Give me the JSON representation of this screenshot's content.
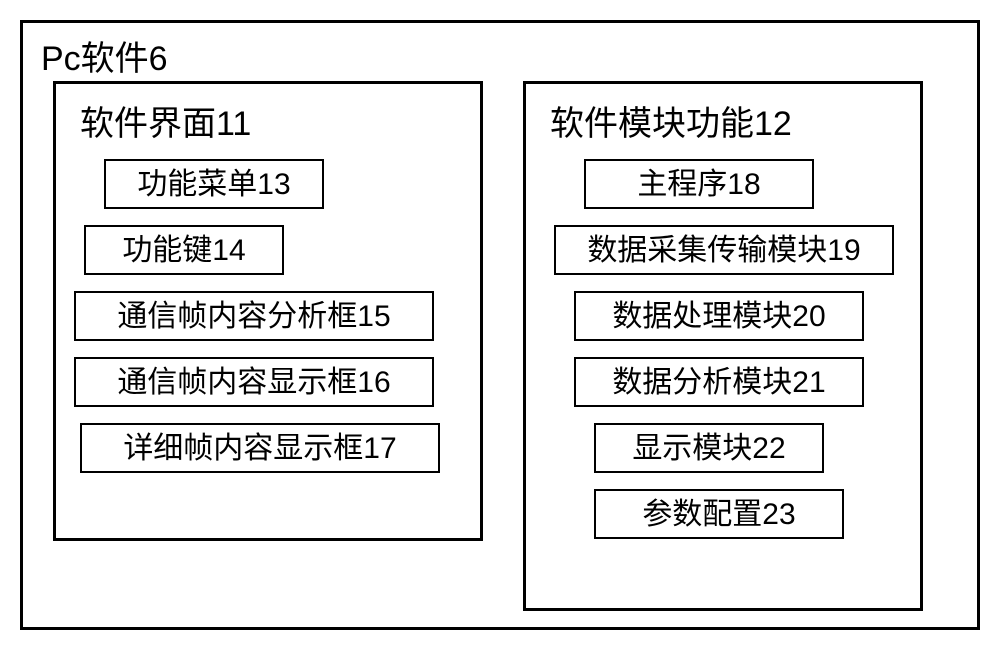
{
  "colors": {
    "border": "#000000",
    "background": "#ffffff",
    "text": "#000000"
  },
  "typography": {
    "title_fontsize_pt": 26,
    "item_fontsize_pt": 22,
    "font_family": "SimSun"
  },
  "outer": {
    "title": "Pc软件6"
  },
  "left_panel": {
    "title": "软件界面11",
    "items": [
      {
        "label": "功能菜单13"
      },
      {
        "label": "功能键14"
      },
      {
        "label": "通信帧内容分析框15"
      },
      {
        "label": "通信帧内容显示框16"
      },
      {
        "label": "详细帧内容显示框17"
      }
    ]
  },
  "right_panel": {
    "title": "软件模块功能12",
    "items": [
      {
        "label": "主程序18"
      },
      {
        "label": "数据采集传输模块19"
      },
      {
        "label": "数据处理模块20"
      },
      {
        "label": "数据分析模块21"
      },
      {
        "label": "显示模块22"
      },
      {
        "label": "参数配置23"
      }
    ]
  }
}
